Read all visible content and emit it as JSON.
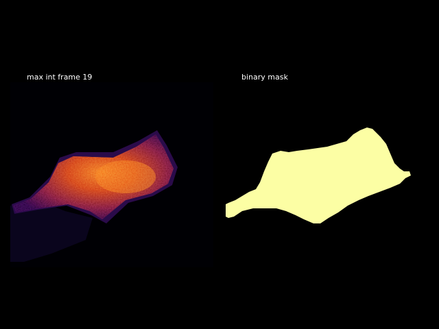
{
  "figure": {
    "background": "#000000",
    "title_color": "#ffffff"
  },
  "panels": [
    {
      "title": "max int frame 19",
      "colormap": "inferno",
      "content": "fluorescence-intensity-image"
    },
    {
      "title": "binary mask",
      "mask_color": "#fcfea4",
      "background": "#000000",
      "content": "binary-mask-image"
    }
  ]
}
